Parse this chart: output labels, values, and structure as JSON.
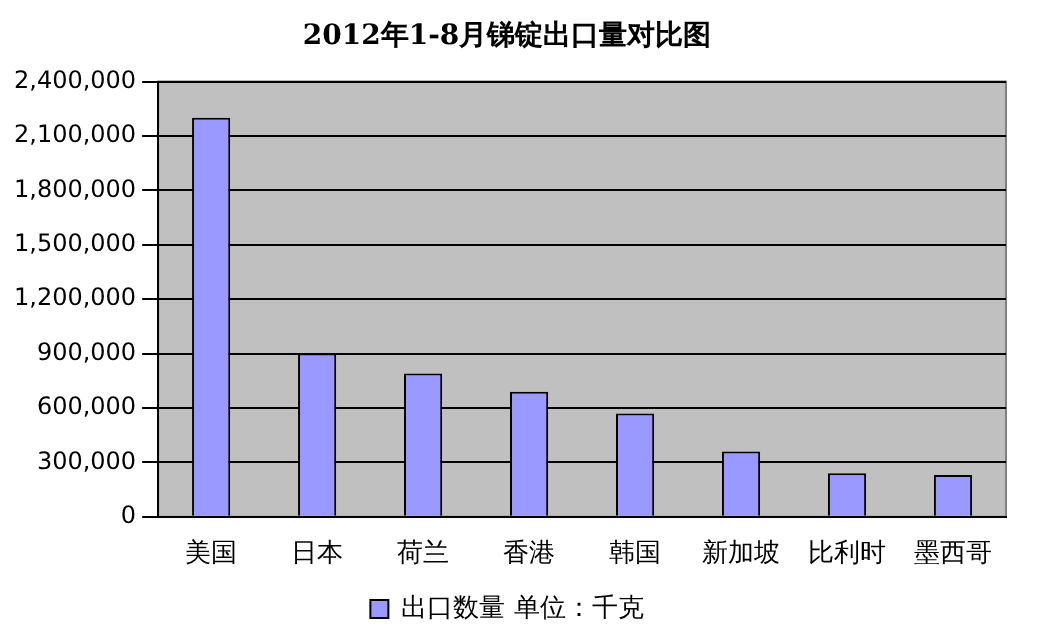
{
  "chart_data": {
    "type": "bar",
    "title": "2012年1-8月锑锭出口量对比图",
    "categories": [
      "美国",
      "日本",
      "荷兰",
      "香港",
      "韩国",
      "新加坡",
      "比利时",
      "墨西哥"
    ],
    "series": [
      {
        "name": "出口数量 单位：千克",
        "color": "#9999ff",
        "values": [
          2200000,
          900000,
          790000,
          690000,
          570000,
          360000,
          240000,
          230000
        ]
      }
    ],
    "ylim": [
      0,
      2400000
    ],
    "yticks": [
      {
        "value": 0,
        "label": "0"
      },
      {
        "value": 300000,
        "label": "300,000"
      },
      {
        "value": 600000,
        "label": "600,000"
      },
      {
        "value": 900000,
        "label": "900,000"
      },
      {
        "value": 1200000,
        "label": "1,200,000"
      },
      {
        "value": 1500000,
        "label": "1,500,000"
      },
      {
        "value": 1800000,
        "label": "1,800,000"
      },
      {
        "value": 2100000,
        "label": "2,100,000"
      },
      {
        "value": 2400000,
        "label": "2,400,000"
      }
    ],
    "grid": "y",
    "legend": "bottom"
  }
}
